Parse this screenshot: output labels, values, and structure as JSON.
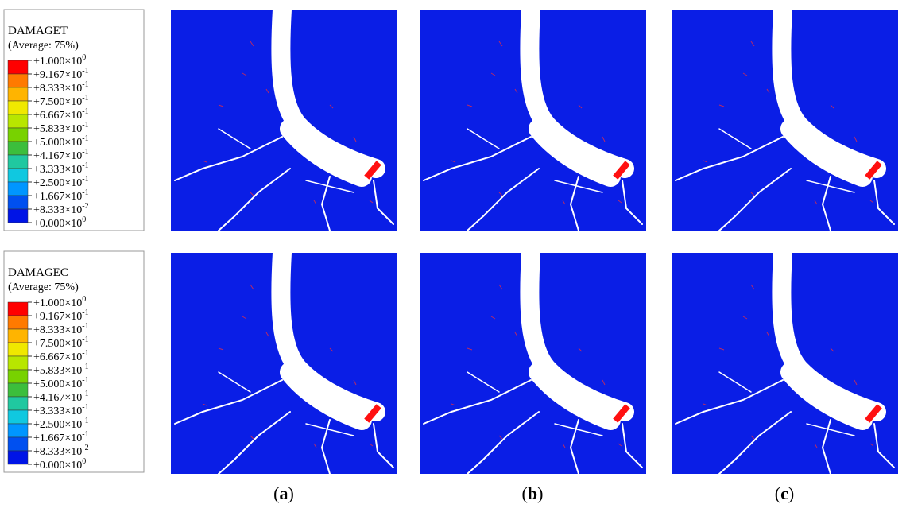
{
  "legends": [
    {
      "title": "DAMAGET",
      "subtitle": "(Average: 75%)",
      "entries": [
        {
          "text": "+1.000×10",
          "sup": "0"
        },
        {
          "text": "+9.167×10",
          "sup": "-1"
        },
        {
          "text": "+8.333×10",
          "sup": "-1"
        },
        {
          "text": "+7.500×10",
          "sup": "-1"
        },
        {
          "text": "+6.667×10",
          "sup": "-1"
        },
        {
          "text": "+5.833×10",
          "sup": "-1"
        },
        {
          "text": "+5.000×10",
          "sup": "-1"
        },
        {
          "text": "+4.167×10",
          "sup": "-1"
        },
        {
          "text": "+3.333×10",
          "sup": "-1"
        },
        {
          "text": "+2.500×10",
          "sup": "-1"
        },
        {
          "text": "+1.667×10",
          "sup": "-1"
        },
        {
          "text": "+8.333×10",
          "sup": "-2"
        },
        {
          "text": "+0.000×10",
          "sup": "0"
        }
      ],
      "colors": [
        "#ff0000",
        "#ff7a00",
        "#ffb400",
        "#f0e800",
        "#b8e600",
        "#78d200",
        "#3cbe3c",
        "#20c8a0",
        "#10c8e0",
        "#0096ff",
        "#0050f0",
        "#0014e6"
      ]
    },
    {
      "title": "DAMAGEC",
      "subtitle": "(Average: 75%)",
      "entries": [
        {
          "text": "+1.000×10",
          "sup": "0"
        },
        {
          "text": "+9.167×10",
          "sup": "-1"
        },
        {
          "text": "+8.333×10",
          "sup": "-1"
        },
        {
          "text": "+7.500×10",
          "sup": "-1"
        },
        {
          "text": "+6.667×10",
          "sup": "-1"
        },
        {
          "text": "+5.833×10",
          "sup": "-1"
        },
        {
          "text": "+5.000×10",
          "sup": "-1"
        },
        {
          "text": "+4.167×10",
          "sup": "-1"
        },
        {
          "text": "+3.333×10",
          "sup": "-1"
        },
        {
          "text": "+2.500×10",
          "sup": "-1"
        },
        {
          "text": "+1.667×10",
          "sup": "-1"
        },
        {
          "text": "+8.333×10",
          "sup": "-2"
        },
        {
          "text": "+0.000×10",
          "sup": "0"
        }
      ],
      "colors": [
        "#ff0000",
        "#ff7a00",
        "#ffb400",
        "#f0e800",
        "#b8e600",
        "#78d200",
        "#3cbe3c",
        "#20c8a0",
        "#10c8e0",
        "#0096ff",
        "#0050f0",
        "#0014e6"
      ]
    }
  ],
  "panels": [
    {
      "label": [
        "(",
        "a",
        ")"
      ]
    },
    {
      "label": [
        "(",
        "b",
        ")"
      ]
    },
    {
      "label": [
        "(",
        "c",
        ")"
      ]
    }
  ]
}
